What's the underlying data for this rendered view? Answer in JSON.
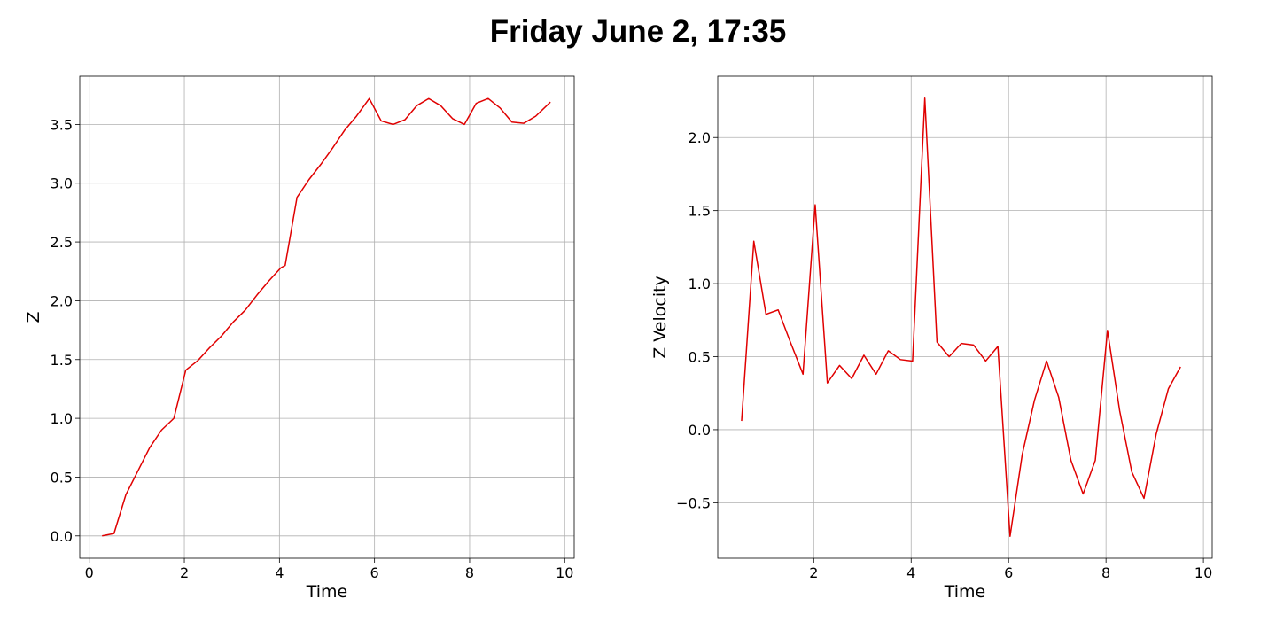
{
  "title": "Friday June 2, 17:35",
  "line_color": "#e00000",
  "grid_color": "#b0b0b0",
  "chart_data": [
    {
      "type": "line",
      "xlabel": "Time",
      "ylabel": "Z",
      "xlim": [
        -0.2,
        10.2
      ],
      "ylim": [
        -0.19,
        3.91
      ],
      "xticks": [
        0,
        2,
        4,
        6,
        8,
        10
      ],
      "yticks": [
        0.0,
        0.5,
        1.0,
        1.5,
        2.0,
        2.5,
        3.0,
        3.5
      ],
      "ytick_labels": [
        "0.0",
        "0.5",
        "1.0",
        "1.5",
        "2.0",
        "2.5",
        "3.0",
        "3.5"
      ],
      "xtick_labels": [
        "0",
        "2",
        "4",
        "6",
        "8",
        "10"
      ],
      "grid": true,
      "x": [
        0.27,
        0.52,
        0.77,
        1.02,
        1.27,
        1.52,
        1.78,
        2.03,
        2.28,
        2.53,
        2.78,
        3.03,
        3.28,
        3.53,
        3.78,
        4.03,
        4.12,
        4.37,
        4.62,
        4.87,
        5.12,
        5.37,
        5.62,
        5.89,
        6.14,
        6.39,
        6.64,
        6.89,
        7.14,
        7.39,
        7.64,
        7.89,
        8.14,
        8.39,
        8.64,
        8.89,
        9.14,
        9.39,
        9.7
      ],
      "y": [
        0.0,
        0.02,
        0.35,
        0.55,
        0.75,
        0.9,
        1.0,
        1.41,
        1.49,
        1.6,
        1.7,
        1.82,
        1.92,
        2.05,
        2.17,
        2.28,
        2.3,
        2.88,
        3.03,
        3.16,
        3.3,
        3.45,
        3.57,
        3.72,
        3.53,
        3.5,
        3.54,
        3.66,
        3.72,
        3.66,
        3.55,
        3.5,
        3.68,
        3.72,
        3.64,
        3.52,
        3.51,
        3.57,
        3.69
      ]
    },
    {
      "type": "line",
      "xlabel": "Time",
      "ylabel": "Z Velocity",
      "xlim": [
        0.03,
        10.18
      ],
      "ylim": [
        -0.88,
        2.42
      ],
      "xticks": [
        2,
        4,
        6,
        8,
        10
      ],
      "xtick_labels": [
        "2",
        "4",
        "6",
        "8",
        "10"
      ],
      "yticks": [
        -0.5,
        0.0,
        0.5,
        1.0,
        1.5,
        2.0
      ],
      "ytick_labels": [
        "−0.5",
        "0.0",
        "0.5",
        "1.0",
        "1.5",
        "2.0"
      ],
      "grid": true,
      "x": [
        0.52,
        0.77,
        1.02,
        1.27,
        1.52,
        1.78,
        2.03,
        2.28,
        2.53,
        2.78,
        3.03,
        3.28,
        3.53,
        3.78,
        4.03,
        4.28,
        4.53,
        4.78,
        5.03,
        5.28,
        5.53,
        5.78,
        6.03,
        6.28,
        6.53,
        6.78,
        7.03,
        7.28,
        7.53,
        7.78,
        8.03,
        8.28,
        8.53,
        8.78,
        9.03,
        9.28,
        9.53
      ],
      "y": [
        0.06,
        1.29,
        0.79,
        0.82,
        0.6,
        0.38,
        1.54,
        0.32,
        0.44,
        0.35,
        0.51,
        0.38,
        0.54,
        0.48,
        0.47,
        2.27,
        0.6,
        0.5,
        0.59,
        0.58,
        0.47,
        0.57,
        -0.73,
        -0.17,
        0.2,
        0.47,
        0.22,
        -0.21,
        -0.44,
        -0.21,
        0.68,
        0.13,
        -0.29,
        -0.47,
        -0.03,
        0.28,
        0.43
      ]
    }
  ]
}
